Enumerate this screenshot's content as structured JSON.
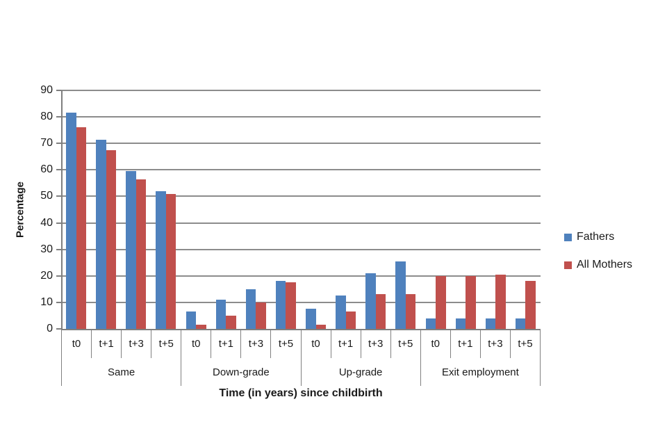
{
  "chart_data": {
    "type": "bar",
    "title": "",
    "xlabel": "Time (in years) since childbirth",
    "ylabel": "Percentage",
    "ylim": [
      0,
      90
    ],
    "yticks": [
      0,
      10,
      20,
      30,
      40,
      50,
      60,
      70,
      80,
      90
    ],
    "grid": true,
    "legend_position": "right",
    "groups": [
      "Same",
      "Down-grade",
      "Up-grade",
      "Exit employment"
    ],
    "subcategories": [
      "t0",
      "t+1",
      "t+3",
      "t+5"
    ],
    "series": [
      {
        "name": "Fathers",
        "color": "#4F81BD",
        "values": [
          [
            81.5,
            71.5,
            59.5,
            52
          ],
          [
            6.5,
            11,
            15,
            18
          ],
          [
            7.5,
            12.5,
            21,
            25.5
          ],
          [
            4,
            4,
            4,
            4
          ]
        ]
      },
      {
        "name": "All Mothers",
        "color": "#C0504D",
        "values": [
          [
            76,
            67.5,
            56.5,
            51
          ],
          [
            1.5,
            5,
            10,
            17.5
          ],
          [
            1.5,
            6.5,
            13,
            13
          ],
          [
            20,
            20,
            20.5,
            18
          ]
        ]
      }
    ],
    "colors": {
      "gridline": "#8C8C8C",
      "axis": "#7F7F7F",
      "text": "#1A1A1A"
    }
  }
}
